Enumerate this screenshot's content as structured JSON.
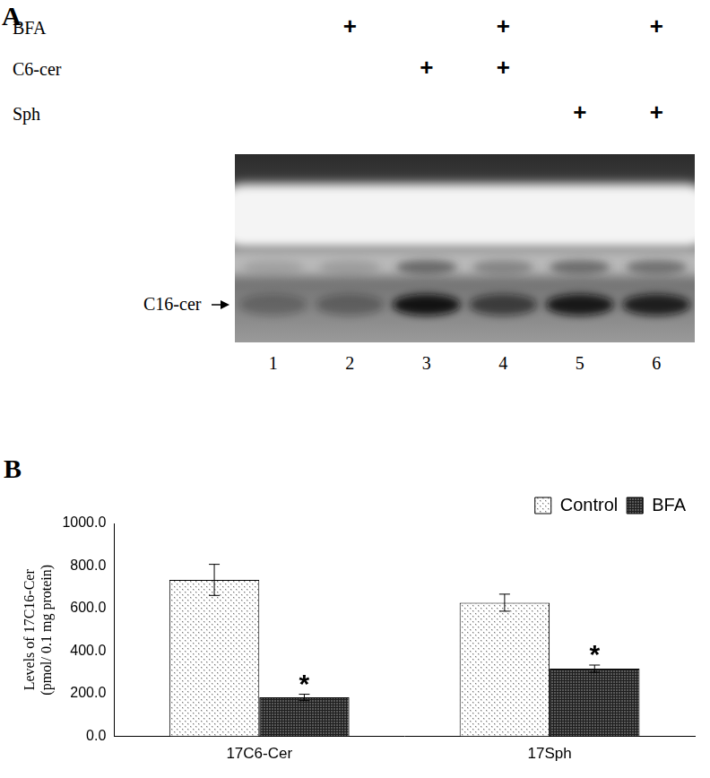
{
  "panel_a": {
    "label": "A",
    "rows": [
      {
        "name": "BFA",
        "marks": [
          null,
          "+",
          null,
          "+",
          null,
          "+"
        ]
      },
      {
        "name": "C6-cer",
        "marks": [
          null,
          null,
          "+",
          "+",
          null,
          null
        ]
      },
      {
        "name": "Sph",
        "marks": [
          null,
          null,
          null,
          null,
          "+",
          "+"
        ]
      }
    ],
    "band_label": "C16-cer",
    "lanes": [
      "1",
      "2",
      "3",
      "4",
      "5",
      "6"
    ],
    "band_intensity": [
      0.25,
      0.3,
      0.95,
      0.6,
      0.9,
      0.85
    ]
  },
  "chart_data": {
    "panel_label": "B",
    "type": "bar",
    "y_label": [
      "Levels of 17C16-Cer",
      "(pmol/ 0.1 mg protein)"
    ],
    "categories": [
      "17C6-Cer",
      "17Sph"
    ],
    "series": [
      {
        "name": "Control",
        "color": "#d9d9d9",
        "values": [
          735,
          628
        ],
        "errors": [
          73,
          40
        ]
      },
      {
        "name": "BFA",
        "color": "#595959",
        "values": [
          183,
          318
        ],
        "errors": [
          15,
          17
        ]
      }
    ],
    "annotations": [
      {
        "text": "*",
        "category": "17C6-Cer",
        "series": "BFA"
      },
      {
        "text": "*",
        "category": "17Sph",
        "series": "BFA"
      }
    ],
    "ylim": [
      0,
      1000
    ],
    "yticks": [
      {
        "value": 0,
        "label": "0.0"
      },
      {
        "value": 200,
        "label": "200.0"
      },
      {
        "value": 400,
        "label": "400.0"
      },
      {
        "value": 600,
        "label": "600.0"
      },
      {
        "value": 800,
        "label": "800.0"
      },
      {
        "value": 1000,
        "label": "1000.0"
      }
    ],
    "grid": false,
    "legend": "upper right"
  }
}
